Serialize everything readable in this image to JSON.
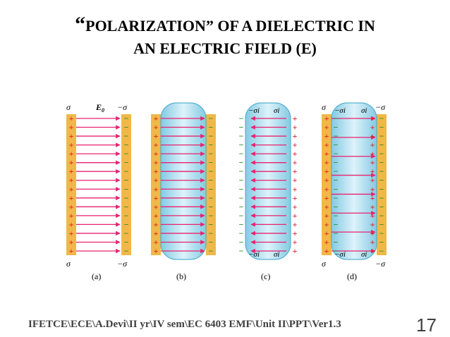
{
  "title": {
    "open_quote": "“",
    "line1": "POLARIZATION” OF A DIELECTRIC IN",
    "line2": "AN ELECTRIC FIELD (E)"
  },
  "figure": {
    "panels": [
      {
        "id": "a",
        "caption": "(a)",
        "top_left": "σ",
        "top_right": "−σ",
        "bottom_left": "σ",
        "bottom_right": "−σ",
        "field_label": "E",
        "field_subscript": "0",
        "dielectric": false,
        "arrow_count": 16
      },
      {
        "id": "b",
        "caption": "(b)",
        "dielectric": true,
        "induced_charges": false,
        "arrow_count": 16
      },
      {
        "id": "c",
        "caption": "(c)",
        "top_left": "−σi",
        "top_right": "σi",
        "bottom_left": "−σi",
        "bottom_right": "σi",
        "dielectric": true,
        "induced_charges": true,
        "arrow_count": 16
      },
      {
        "id": "d",
        "caption": "(d)",
        "top_left": "σ",
        "top_inner_left": "−σi",
        "top_inner_right": "σi",
        "top_right": "−σ",
        "bottom_left": "σ",
        "bottom_inner_left": "−σi",
        "bottom_inner_right": "σi",
        "bottom_right": "−σ",
        "dielectric": true,
        "induced_charges": true,
        "arrow_count": 8
      }
    ],
    "colors": {
      "plate": "#f0b848",
      "field_line": "#e8236f",
      "dielectric": "#9fd6ea",
      "positive": "#e02020",
      "negative": "#2a8a2a"
    }
  },
  "footer": {
    "path": "IFETCE\\ECE\\A.Devi\\II yr\\IV sem\\EC 6403 EMF\\Unit II\\PPT\\Ver1.3",
    "slide_number": "17"
  }
}
